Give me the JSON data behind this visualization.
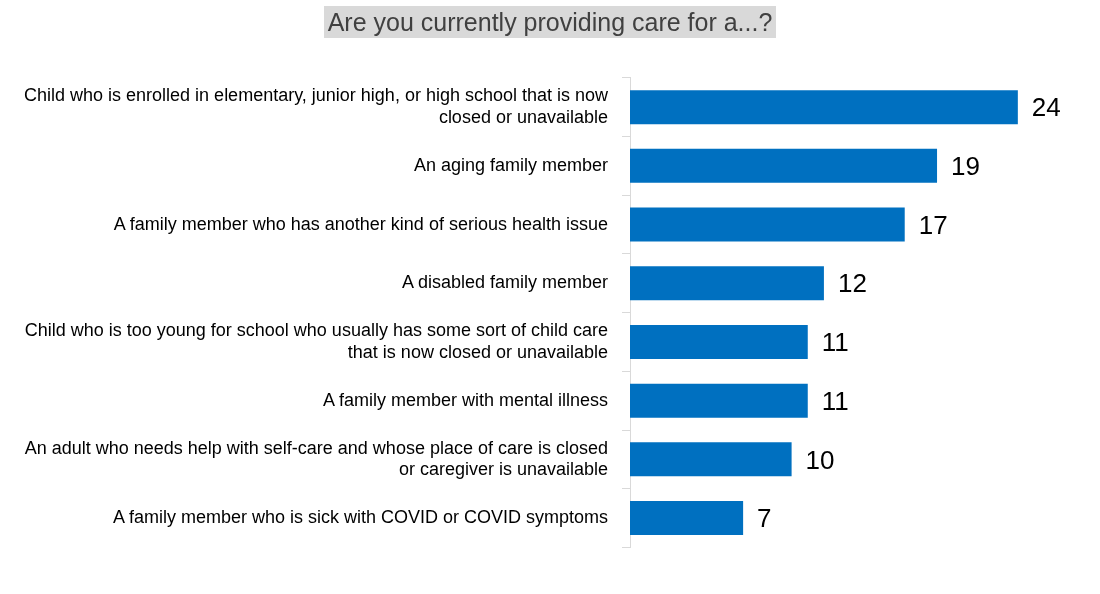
{
  "chart_data": {
    "type": "bar",
    "orientation": "horizontal",
    "title": "Are you currently providing care for a...?",
    "categories": [
      "Child who is enrolled in elementary, junior high, or high school that is now closed or unavailable",
      "An aging family member",
      "A family member who has another kind of serious health issue",
      "A disabled family member",
      "Child who is too young for school who usually has some sort of child care that is now closed or unavailable",
      "A family member with mental illness",
      "An adult who needs help with self-care and whose place of care is closed or caregiver is unavailable",
      "A family member who is sick with COVID or COVID symptoms"
    ],
    "values": [
      24,
      19,
      17,
      12,
      11,
      11,
      10,
      7
    ],
    "color": "#0070c0",
    "data_labels": true,
    "tick_labels": "y"
  }
}
